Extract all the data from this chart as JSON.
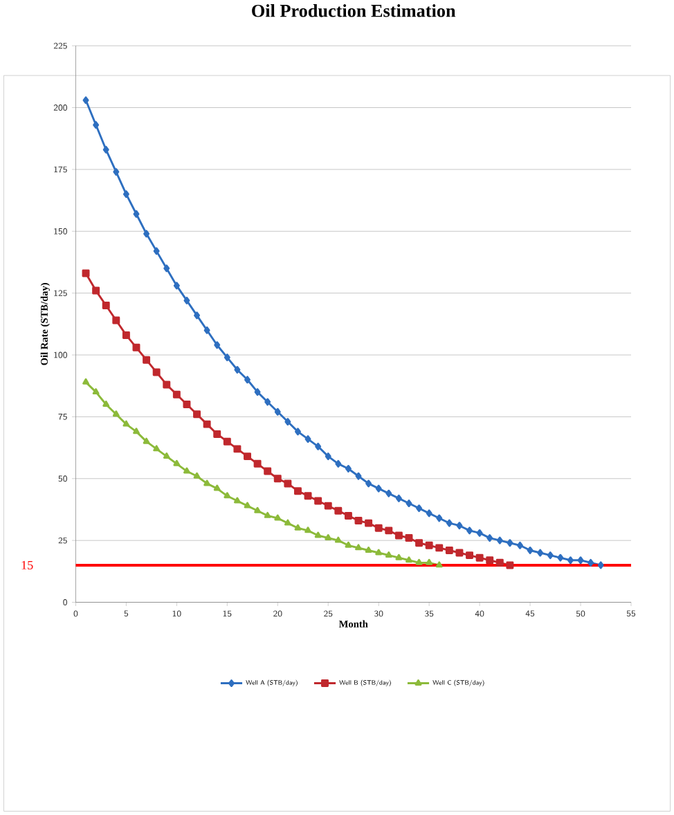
{
  "chart_data": {
    "type": "line",
    "title": "Oil Production Estimation",
    "xlabel": "Month",
    "ylabel": "Oil Rate (STB/day)",
    "xlim": [
      0,
      55
    ],
    "xticks": [
      0,
      5,
      10,
      15,
      20,
      25,
      30,
      35,
      40,
      45,
      50,
      55
    ],
    "ylim": [
      0,
      225
    ],
    "yticks": [
      0,
      25,
      50,
      75,
      100,
      125,
      150,
      175,
      200,
      225
    ],
    "grid": "y",
    "legend": "bottom",
    "line_style": "solid",
    "series": [
      {
        "name": "Well A (STB/day)",
        "color": "#2e6fc0",
        "marker": "diamond",
        "x": [
          1,
          2,
          3,
          4,
          5,
          6,
          7,
          8,
          9,
          10,
          11,
          12,
          13,
          14,
          15,
          16,
          17,
          18,
          19,
          20,
          21,
          22,
          23,
          24,
          25,
          26,
          27,
          28,
          29,
          30,
          31,
          32,
          33,
          34,
          35,
          36,
          37,
          38,
          39,
          40,
          41,
          42,
          43,
          44,
          45,
          46,
          47,
          48,
          49,
          50,
          51,
          52
        ],
        "values": [
          203,
          193,
          183,
          174,
          165,
          157,
          149,
          142,
          135,
          128,
          122,
          116,
          110,
          104,
          99,
          94,
          90,
          85,
          81,
          77,
          73,
          69,
          66,
          63,
          59,
          56,
          54,
          51,
          48,
          46,
          44,
          42,
          40,
          38,
          36,
          34,
          32,
          31,
          29,
          28,
          26,
          25,
          24,
          23,
          21,
          20,
          19,
          18,
          17,
          17,
          16,
          15
        ]
      },
      {
        "name": "Well B (STB/day)",
        "color": "#c0282d",
        "marker": "square",
        "x": [
          1,
          2,
          3,
          4,
          5,
          6,
          7,
          8,
          9,
          10,
          11,
          12,
          13,
          14,
          15,
          16,
          17,
          18,
          19,
          20,
          21,
          22,
          23,
          24,
          25,
          26,
          27,
          28,
          29,
          30,
          31,
          32,
          33,
          34,
          35,
          36,
          37,
          38,
          39,
          40,
          41,
          42,
          43
        ],
        "values": [
          133,
          126,
          120,
          114,
          108,
          103,
          98,
          93,
          88,
          84,
          80,
          76,
          72,
          68,
          65,
          62,
          59,
          56,
          53,
          50,
          48,
          45,
          43,
          41,
          39,
          37,
          35,
          33,
          32,
          30,
          29,
          27,
          26,
          24,
          23,
          22,
          21,
          20,
          19,
          18,
          17,
          16,
          15
        ]
      },
      {
        "name": "Well C (STB/day)",
        "color": "#8cba3a",
        "marker": "triangle",
        "x": [
          1,
          2,
          3,
          4,
          5,
          6,
          7,
          8,
          9,
          10,
          11,
          12,
          13,
          14,
          15,
          16,
          17,
          18,
          19,
          20,
          21,
          22,
          23,
          24,
          25,
          26,
          27,
          28,
          29,
          30,
          31,
          32,
          33,
          34,
          35,
          36
        ],
        "values": [
          89,
          85,
          80,
          76,
          72,
          69,
          65,
          62,
          59,
          56,
          53,
          51,
          48,
          46,
          43,
          41,
          39,
          37,
          35,
          34,
          32,
          30,
          29,
          27,
          26,
          25,
          23,
          22,
          21,
          20,
          19,
          18,
          17,
          16,
          16,
          15
        ]
      }
    ],
    "ref_lines": [
      {
        "axis": "y",
        "value": 15,
        "label": "15",
        "color": "#ff0000"
      }
    ]
  }
}
